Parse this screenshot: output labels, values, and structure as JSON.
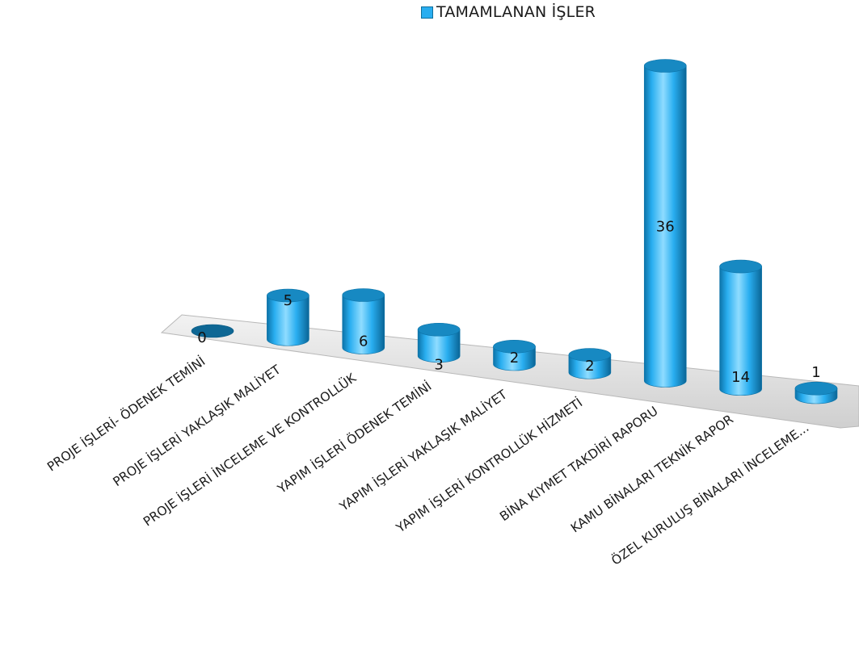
{
  "chart_data": {
    "type": "bar",
    "categories": [
      "PROJE İŞLERİ- ÖDENEK TEMİNİ",
      "PROJE İŞLERİ YAKLAŞIK MALİYET",
      "PROJE İŞLERİ İNCELEME VE KONTROLLÜK",
      "YAPIM İŞLERİ ÖDENEK TEMİNİ",
      "YAPIM İŞLERİ YAKLAŞIK MALİYET",
      "YAPIM İŞLERİ KONTROLLÜK HİZMETİ",
      "BİNA KIYMET TAKDİRİ RAPORU",
      "KAMU BİNALARI TEKNİK RAPOR",
      "ÖZEL KURULUŞ BİNALARI İNCELEME..."
    ],
    "series": [
      {
        "name": "TAMAMLANAN İŞLER",
        "values": [
          0,
          5,
          6,
          3,
          2,
          2,
          36,
          14,
          1
        ]
      }
    ],
    "data_labels": [
      "0",
      "5",
      "6",
      "3",
      "2",
      "2",
      "36",
      "14",
      "1"
    ],
    "legend_position": "top",
    "style": "3d-cylinder",
    "colors": {
      "bar": "#29aef0",
      "bar_dark": "#0c73a8",
      "top": "#1789c2",
      "floor": "#dcdcdc"
    }
  }
}
